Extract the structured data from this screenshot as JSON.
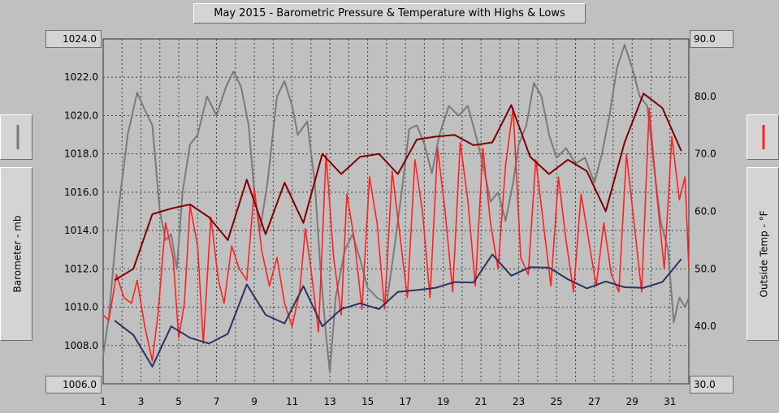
{
  "title": "May 2015 - Barometric Pressure & Temperature with Highs & Lows",
  "left_axis": {
    "label": "Barometer - mb",
    "top_value": "1024.0",
    "bottom_value": "1006.0",
    "ticks": [
      "1022.0",
      "1020.0",
      "1018.0",
      "1016.0",
      "1014.0",
      "1012.0",
      "1010.0",
      "1008.0"
    ]
  },
  "right_axis": {
    "label": "Outside Temp - °F",
    "top_value": "90.0",
    "bottom_value": "30.0",
    "ticks": [
      "80.0",
      "70.0",
      "60.0",
      "50.0",
      "40.0"
    ]
  },
  "x_axis": {
    "ticks": [
      "1",
      "3",
      "5",
      "7",
      "9",
      "11",
      "13",
      "15",
      "17",
      "19",
      "21",
      "23",
      "25",
      "27",
      "29",
      "31"
    ]
  },
  "legend": {
    "barometer_icon": "gray-line-icon",
    "temperature_icon": "red-line-icon"
  },
  "colors": {
    "barometer": "#7a7a7a",
    "temperature": "#ff2020",
    "highs": "#800000",
    "lows": "#303060",
    "grid": "#404040",
    "plot_bg": "#c0c0c0"
  },
  "chart_data": {
    "type": "line",
    "title": "May 2015 - Barometric Pressure & Temperature with Highs & Lows",
    "x_range": [
      1,
      32
    ],
    "grid": true,
    "left_ylim": [
      1006,
      1024
    ],
    "right_ylim": [
      30,
      90
    ],
    "series": [
      {
        "name": "Barometer",
        "axis": "left",
        "points": [
          [
            1,
            1007.5
          ],
          [
            1.3,
            1009.5
          ],
          [
            1.8,
            1015
          ],
          [
            2.3,
            1019
          ],
          [
            2.8,
            1021.2
          ],
          [
            3.2,
            1020.3
          ],
          [
            3.6,
            1019.5
          ],
          [
            4.0,
            1015
          ],
          [
            4.3,
            1013.5
          ],
          [
            4.6,
            1013.8
          ],
          [
            4.9,
            1012
          ],
          [
            5.2,
            1016
          ],
          [
            5.6,
            1018.5
          ],
          [
            6.0,
            1019
          ],
          [
            6.5,
            1021
          ],
          [
            7.0,
            1020
          ],
          [
            7.5,
            1021.5
          ],
          [
            7.9,
            1022.3
          ],
          [
            8.3,
            1021.5
          ],
          [
            8.7,
            1019.5
          ],
          [
            9.0,
            1016
          ],
          [
            9.3,
            1014
          ],
          [
            9.7,
            1016.5
          ],
          [
            10.2,
            1021
          ],
          [
            10.6,
            1021.8
          ],
          [
            11.0,
            1020.5
          ],
          [
            11.3,
            1019
          ],
          [
            11.8,
            1019.7
          ],
          [
            12.2,
            1016.5
          ],
          [
            12.5,
            1012
          ],
          [
            12.8,
            1008.5
          ],
          [
            13.0,
            1006.6
          ],
          [
            13.3,
            1010.5
          ],
          [
            13.8,
            1013
          ],
          [
            14.2,
            1013.8
          ],
          [
            14.6,
            1012.5
          ],
          [
            15.0,
            1011
          ],
          [
            15.5,
            1010.5
          ],
          [
            16.0,
            1010.2
          ],
          [
            16.4,
            1013
          ],
          [
            16.8,
            1016
          ],
          [
            17.2,
            1019.3
          ],
          [
            17.6,
            1019.5
          ],
          [
            18.0,
            1018.5
          ],
          [
            18.4,
            1017
          ],
          [
            18.8,
            1019
          ],
          [
            19.3,
            1020.5
          ],
          [
            19.8,
            1020
          ],
          [
            20.3,
            1020.5
          ],
          [
            20.8,
            1018.7
          ],
          [
            21.2,
            1017
          ],
          [
            21.5,
            1015.5
          ],
          [
            21.9,
            1016
          ],
          [
            22.3,
            1014.5
          ],
          [
            22.7,
            1016.5
          ],
          [
            23.0,
            1018.5
          ],
          [
            23.4,
            1019.5
          ],
          [
            23.8,
            1021.7
          ],
          [
            24.2,
            1021
          ],
          [
            24.6,
            1019
          ],
          [
            25.0,
            1017.8
          ],
          [
            25.5,
            1018.3
          ],
          [
            26.0,
            1017.5
          ],
          [
            26.5,
            1017.8
          ],
          [
            27.0,
            1016.5
          ],
          [
            27.4,
            1018
          ],
          [
            27.8,
            1020
          ],
          [
            28.2,
            1022.5
          ],
          [
            28.6,
            1023.7
          ],
          [
            29.0,
            1022.5
          ],
          [
            29.4,
            1021
          ],
          [
            29.8,
            1020.5
          ],
          [
            30.2,
            1017
          ],
          [
            30.5,
            1014.5
          ],
          [
            30.9,
            1013
          ],
          [
            31.2,
            1009.2
          ],
          [
            31.5,
            1010.5
          ],
          [
            31.8,
            1010
          ],
          [
            32.0,
            1010.5
          ]
        ]
      },
      {
        "name": "Outside Temp",
        "axis": "right",
        "points": [
          [
            1,
            42
          ],
          [
            1.3,
            41
          ],
          [
            1.7,
            49
          ],
          [
            2.1,
            45
          ],
          [
            2.5,
            44
          ],
          [
            2.8,
            48
          ],
          [
            3.2,
            40
          ],
          [
            3.6,
            34
          ],
          [
            3.9,
            42
          ],
          [
            4.3,
            58
          ],
          [
            4.7,
            52
          ],
          [
            5.0,
            38
          ],
          [
            5.3,
            44
          ],
          [
            5.6,
            61
          ],
          [
            6.0,
            54
          ],
          [
            6.3,
            37
          ],
          [
            6.7,
            59
          ],
          [
            7.1,
            48
          ],
          [
            7.4,
            44
          ],
          [
            7.8,
            54
          ],
          [
            8.2,
            50
          ],
          [
            8.6,
            48
          ],
          [
            9.0,
            64
          ],
          [
            9.4,
            53
          ],
          [
            9.8,
            47
          ],
          [
            10.2,
            52
          ],
          [
            10.6,
            44
          ],
          [
            11.0,
            40
          ],
          [
            11.4,
            46
          ],
          [
            11.7,
            57
          ],
          [
            12.0,
            50
          ],
          [
            12.4,
            39
          ],
          [
            12.8,
            70
          ],
          [
            13.2,
            52
          ],
          [
            13.6,
            42
          ],
          [
            13.9,
            63
          ],
          [
            14.3,
            55
          ],
          [
            14.7,
            43
          ],
          [
            15.1,
            66
          ],
          [
            15.5,
            58
          ],
          [
            15.9,
            43
          ],
          [
            16.3,
            67
          ],
          [
            16.7,
            56
          ],
          [
            17.1,
            45
          ],
          [
            17.5,
            69
          ],
          [
            17.9,
            60
          ],
          [
            18.3,
            45
          ],
          [
            18.7,
            71
          ],
          [
            19.1,
            60
          ],
          [
            19.5,
            46
          ],
          [
            19.9,
            72
          ],
          [
            20.3,
            62
          ],
          [
            20.7,
            47
          ],
          [
            21.1,
            71
          ],
          [
            21.5,
            58
          ],
          [
            21.9,
            50
          ],
          [
            22.3,
            68
          ],
          [
            22.7,
            78
          ],
          [
            23.1,
            52
          ],
          [
            23.5,
            49
          ],
          [
            23.9,
            69
          ],
          [
            24.3,
            58
          ],
          [
            24.7,
            47
          ],
          [
            25.1,
            66
          ],
          [
            25.5,
            55
          ],
          [
            25.9,
            46
          ],
          [
            26.3,
            63
          ],
          [
            26.7,
            55
          ],
          [
            27.1,
            47
          ],
          [
            27.5,
            58
          ],
          [
            27.9,
            49
          ],
          [
            28.3,
            46
          ],
          [
            28.7,
            70
          ],
          [
            29.1,
            58
          ],
          [
            29.5,
            46
          ],
          [
            29.9,
            78
          ],
          [
            30.3,
            63
          ],
          [
            30.7,
            50
          ],
          [
            31.1,
            73
          ],
          [
            31.5,
            62
          ],
          [
            31.8,
            66
          ],
          [
            32.0,
            50
          ]
        ]
      },
      {
        "name": "Temp Highs",
        "axis": "right",
        "points": [
          [
            1.6,
            48
          ],
          [
            2.6,
            50
          ],
          [
            3.6,
            59.5
          ],
          [
            4.6,
            60.5
          ],
          [
            5.6,
            61.2
          ],
          [
            6.6,
            59
          ],
          [
            7.6,
            55
          ],
          [
            8.6,
            65.5
          ],
          [
            9.6,
            56
          ],
          [
            10.6,
            65
          ],
          [
            11.6,
            58
          ],
          [
            12.6,
            70
          ],
          [
            13.6,
            66.5
          ],
          [
            14.6,
            69.5
          ],
          [
            15.6,
            70
          ],
          [
            16.6,
            66.5
          ],
          [
            17.6,
            72.5
          ],
          [
            18.6,
            73
          ],
          [
            19.6,
            73.3
          ],
          [
            20.6,
            71.5
          ],
          [
            21.6,
            72
          ],
          [
            22.6,
            78.5
          ],
          [
            23.6,
            69.5
          ],
          [
            24.6,
            66.5
          ],
          [
            25.6,
            69
          ],
          [
            26.6,
            67
          ],
          [
            27.6,
            60
          ],
          [
            28.6,
            72
          ],
          [
            29.6,
            80.5
          ],
          [
            30.6,
            78
          ],
          [
            31.6,
            70.5
          ]
        ]
      },
      {
        "name": "Temp Lows",
        "axis": "right",
        "points": [
          [
            1.6,
            41
          ],
          [
            2.6,
            38.5
          ],
          [
            3.6,
            33
          ],
          [
            4.6,
            40
          ],
          [
            5.6,
            38
          ],
          [
            6.6,
            37
          ],
          [
            7.6,
            38.7
          ],
          [
            8.6,
            47.3
          ],
          [
            9.6,
            42
          ],
          [
            10.6,
            40.5
          ],
          [
            11.6,
            47
          ],
          [
            12.6,
            40
          ],
          [
            13.6,
            43
          ],
          [
            14.6,
            44
          ],
          [
            15.6,
            43
          ],
          [
            16.6,
            46
          ],
          [
            17.6,
            46.3
          ],
          [
            18.6,
            46.7
          ],
          [
            19.6,
            47.7
          ],
          [
            20.6,
            47.6
          ],
          [
            21.6,
            52.5
          ],
          [
            22.6,
            48.8
          ],
          [
            23.6,
            50.3
          ],
          [
            24.6,
            50.2
          ],
          [
            25.6,
            48.2
          ],
          [
            26.6,
            46.6
          ],
          [
            27.6,
            47.8
          ],
          [
            28.6,
            46.8
          ],
          [
            29.6,
            46.7
          ],
          [
            30.6,
            47.7
          ],
          [
            31.6,
            51.7
          ]
        ]
      }
    ]
  }
}
